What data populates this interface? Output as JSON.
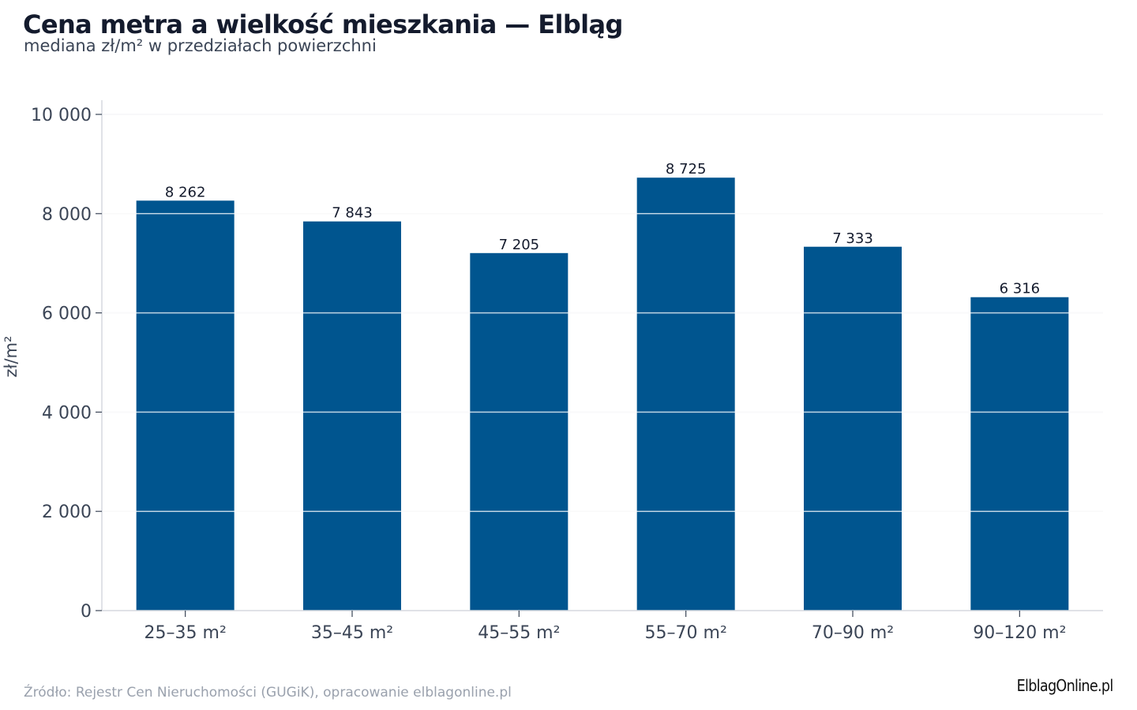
{
  "title": "Cena metra a wielkość mieszkania — Elbląg",
  "subtitle": "mediana zł/m² w przedziałach powierzchni",
  "source": "Źródło: Rejestr Cen Nieruchomości (GUGiK), opracowanie elblagonline.pl",
  "logo": "ElblagOnline.pl",
  "colors": {
    "bar": "#00558f",
    "grid": "#e6e8ec",
    "axis": "#d5d9df",
    "tick_text": "#3b4556",
    "value_text": "#141b2d"
  },
  "chart_data": {
    "type": "bar",
    "title": "Cena metra a wielkość mieszkania — Elbląg",
    "subtitle": "mediana zł/m² w przedziałach powierzchni",
    "xlabel": "",
    "ylabel": "zł/m²",
    "categories": [
      "25–35 m²",
      "35–45 m²",
      "45–55 m²",
      "55–70 m²",
      "70–90 m²",
      "90–120 m²"
    ],
    "values": [
      8262,
      7843,
      7205,
      8725,
      7333,
      6316
    ],
    "value_labels": [
      "8 262",
      "7 843",
      "7 205",
      "8 725",
      "7 333",
      "6 316"
    ],
    "ylim": [
      0,
      10000
    ],
    "yticks": [
      0,
      2000,
      4000,
      6000,
      8000,
      10000
    ],
    "ytick_labels": [
      "0",
      "2 000",
      "4 000",
      "6 000",
      "8 000",
      "10 000"
    ],
    "grid": true,
    "legend": "none"
  }
}
